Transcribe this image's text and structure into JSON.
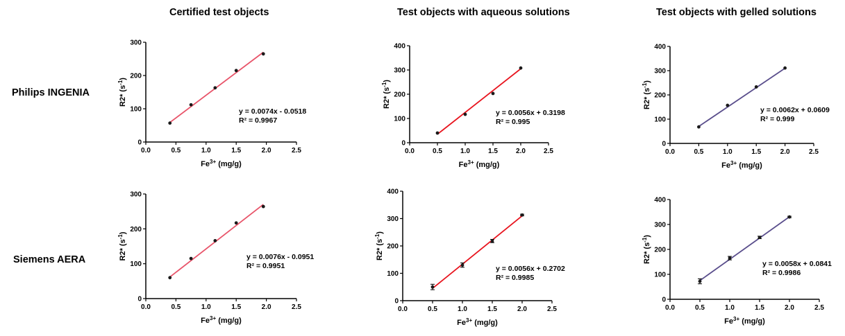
{
  "column_titles": [
    "Certified test objects",
    "Test objects with aqueous solutions",
    "Test objects with gelled solutions"
  ],
  "row_titles": [
    "Philips INGENIA",
    "Siemens AERA"
  ],
  "axis_titles": {
    "x_main": "Fe",
    "x_sup": "3+",
    "x_tail": " (mg/g)",
    "y_main": "R2* (s",
    "y_sup": "-1",
    "y_tail": ")"
  },
  "chart_data": [
    {
      "type": "scatter",
      "scanner": "Philips INGENIA",
      "test_object": "Certified test objects",
      "xlim": [
        0,
        2.5
      ],
      "ylim": [
        0,
        300
      ],
      "xticks": [
        "0.0",
        "0.5",
        "1.0",
        "1.5",
        "2.0",
        "2.5"
      ],
      "yticks": [
        "0",
        "100",
        "200",
        "300"
      ],
      "x": [
        0.4,
        0.75,
        1.15,
        1.5,
        1.95
      ],
      "y": [
        57,
        112,
        163,
        215,
        265
      ],
      "fit_line": {
        "x": [
          0.4,
          1.95
        ],
        "y": [
          59,
          270
        ],
        "color": "#e8546a"
      },
      "equation": "y = 0.0074x - 0.0518",
      "r_squared": "R² = 0.9967"
    },
    {
      "type": "scatter",
      "scanner": "Philips INGENIA",
      "test_object": "Test objects with aqueous solutions",
      "xlim": [
        0,
        2.5
      ],
      "ylim": [
        0,
        400
      ],
      "xticks": [
        "0.0",
        "0.5",
        "1.0",
        "1.5",
        "2.0",
        "2.5"
      ],
      "yticks": [
        "0",
        "100",
        "200",
        "300",
        "400"
      ],
      "x": [
        0.5,
        1.0,
        1.5,
        2.0
      ],
      "y": [
        40,
        117,
        203,
        308
      ],
      "fit_line": {
        "x": [
          0.5,
          2.0
        ],
        "y": [
          35,
          305
        ],
        "color": "#e8141e"
      },
      "equation": "y = 0.0056x + 0.3198",
      "r_squared": "R² = 0.995"
    },
    {
      "type": "scatter",
      "scanner": "Philips INGENIA",
      "test_object": "Test objects with gelled solutions",
      "xlim": [
        0,
        2.5
      ],
      "ylim": [
        0,
        400
      ],
      "xticks": [
        "0.0",
        "0.5",
        "1.0",
        "1.5",
        "2.0",
        "2.5"
      ],
      "yticks": [
        "0",
        "100",
        "200",
        "300",
        "400"
      ],
      "x": [
        0.5,
        1.0,
        1.5,
        2.0
      ],
      "y": [
        68,
        157,
        233,
        311
      ],
      "fit_line": {
        "x": [
          0.5,
          2.0
        ],
        "y": [
          70,
          310
        ],
        "color": "#5a4e8c"
      },
      "equation": "y = 0.0062x + 0.0609",
      "r_squared": "R² = 0.999"
    },
    {
      "type": "scatter",
      "scanner": "Siemens AERA",
      "test_object": "Certified test objects",
      "xlim": [
        0,
        2.5
      ],
      "ylim": [
        0,
        300
      ],
      "xticks": [
        "0.0",
        "0.5",
        "1.0",
        "1.5",
        "2.0",
        "2.5"
      ],
      "yticks": [
        "0",
        "100",
        "200",
        "300"
      ],
      "x": [
        0.4,
        0.75,
        1.15,
        1.5,
        1.95
      ],
      "y": [
        60,
        115,
        166,
        217,
        264
      ],
      "fit_line": {
        "x": [
          0.4,
          1.95
        ],
        "y": [
          62,
          270
        ],
        "color": "#e8546a"
      },
      "equation": "y = 0.0076x - 0.0951",
      "r_squared": "R² = 0.9951"
    },
    {
      "type": "scatter",
      "scanner": "Siemens AERA",
      "test_object": "Test objects with aqueous solutions",
      "xlim": [
        0,
        2.5
      ],
      "ylim": [
        0,
        400
      ],
      "xticks": [
        "0.0",
        "0.5",
        "1.0",
        "1.5",
        "2.0",
        "2.5"
      ],
      "yticks": [
        "0",
        "100",
        "200",
        "300",
        "400"
      ],
      "x": [
        0.5,
        1.0,
        1.5,
        2.0
      ],
      "y": [
        50,
        130,
        218,
        313
      ],
      "y_err": [
        10,
        8,
        6,
        3
      ],
      "fit_line": {
        "x": [
          0.5,
          2.0
        ],
        "y": [
          45,
          310
        ],
        "color": "#e8141e"
      },
      "equation": "y = 0.0056x + 0.2702",
      "r_squared": "R² = 0.9985"
    },
    {
      "type": "scatter",
      "scanner": "Siemens AERA",
      "test_object": "Test objects with gelled solutions",
      "xlim": [
        0,
        2.5
      ],
      "ylim": [
        0,
        400
      ],
      "xticks": [
        "0.0",
        "0.5",
        "1.0",
        "1.5",
        "2.0",
        "2.5"
      ],
      "yticks": [
        "0",
        "100",
        "200",
        "300",
        "400"
      ],
      "x": [
        0.5,
        1.0,
        1.5,
        2.0
      ],
      "y": [
        72,
        165,
        248,
        330
      ],
      "y_err": [
        10,
        7,
        5,
        3
      ],
      "fit_line": {
        "x": [
          0.5,
          2.0
        ],
        "y": [
          75,
          331
        ],
        "color": "#5a4e8c"
      },
      "equation": "y = 0.0058x + 0.0841",
      "r_squared": "R² = 0.9986"
    }
  ]
}
